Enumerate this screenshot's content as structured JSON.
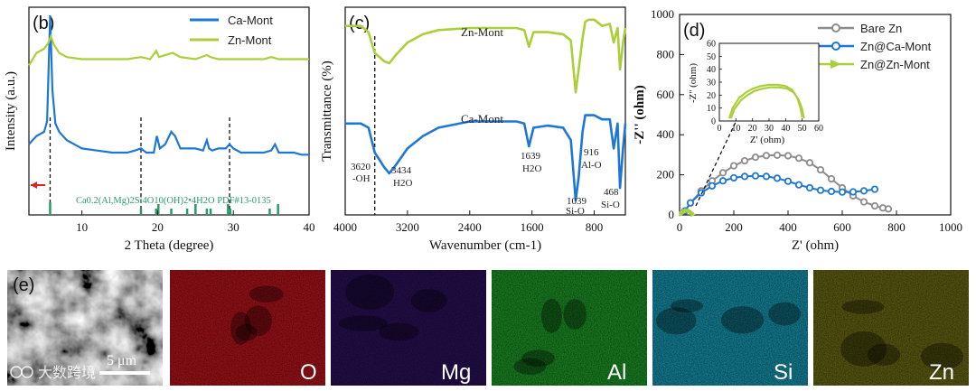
{
  "chart_data": [
    {
      "panel": "(b)",
      "type": "line",
      "xlabel": "2 Theta (degree)",
      "ylabel": "Intensity (a.u.)",
      "xlim": [
        3,
        40
      ],
      "xticks": [
        10,
        20,
        30,
        40
      ],
      "legend": [
        "Ca-Mont",
        "Zn-Mont"
      ],
      "series": [
        {
          "name": "Ca-Mont",
          "color": "#1f77d4",
          "x": [
            3,
            4,
            5,
            5.4,
            5.8,
            6.1,
            6.5,
            7,
            8,
            9,
            10,
            12,
            14,
            16,
            17,
            17.8,
            18.5,
            19.5,
            19.9,
            20.3,
            21,
            21.8,
            22.3,
            23,
            24,
            25,
            26,
            26.5,
            26.8,
            27.2,
            28,
            29,
            29.5,
            30,
            31,
            32,
            33,
            34,
            35,
            35.5,
            36,
            37,
            38,
            39,
            40
          ],
          "y": [
            66,
            62,
            60,
            55,
            4,
            40,
            56,
            60,
            64,
            66,
            68,
            69,
            70,
            70,
            69,
            68,
            70,
            70,
            62,
            68,
            66,
            60,
            62,
            68,
            68,
            68,
            69,
            64,
            68,
            69,
            68,
            68,
            66,
            68,
            70,
            70,
            70,
            70,
            69,
            66,
            70,
            70,
            70,
            71,
            71
          ]
        },
        {
          "name": "Zn-Mont",
          "color": "#a9cf3a",
          "x": [
            3,
            4,
            5,
            5.6,
            5.9,
            6.3,
            7,
            8,
            10,
            12,
            14,
            16,
            17.8,
            19,
            19.8,
            20.2,
            21,
            22,
            23,
            25,
            26.5,
            27,
            28,
            29,
            30,
            32,
            34,
            35,
            36,
            38,
            40
          ],
          "y": [
            28,
            22,
            20,
            17,
            14,
            18,
            22,
            24,
            25,
            25,
            25,
            25,
            24,
            25,
            21,
            24,
            23,
            22,
            24,
            25,
            23,
            24,
            25,
            25,
            25,
            25,
            25,
            24,
            25,
            25,
            25
          ]
        }
      ],
      "reference_pdf_positions": [
        5.8,
        17.8,
        19.8,
        20.1,
        21.8,
        23.9,
        25.0,
        26.5,
        27.0,
        29.3,
        29.6,
        34.8,
        35.9
      ],
      "reference_label": "Ca0.2(Al,Mg)2Si4O10(OH)2•4H2O PDF#13-0135",
      "dashed_x": [
        5.8,
        17.8,
        29.5
      ]
    },
    {
      "panel": "(c)",
      "type": "line",
      "xlabel": "Wavenumber (cm-1)",
      "ylabel": "Transmittance (%)",
      "xlim": [
        4000,
        400
      ],
      "xticks": [
        4000,
        3200,
        2400,
        1600,
        800
      ],
      "series": [
        {
          "name": "Zn-Mont",
          "color": "#a9cf3a",
          "x": [
            4000,
            3800,
            3700,
            3620,
            3500,
            3434,
            3350,
            3200,
            3000,
            2800,
            2400,
            2000,
            1800,
            1700,
            1639,
            1580,
            1400,
            1200,
            1100,
            1039,
            1000,
            950,
            916,
            870,
            800,
            700,
            600,
            550,
            500,
            468,
            430,
            400
          ],
          "y": [
            91,
            91,
            88,
            78,
            74,
            73,
            77,
            83,
            87,
            89,
            90,
            90,
            90,
            89,
            81,
            88,
            88,
            87,
            84,
            59,
            70,
            85,
            93,
            94,
            94,
            91,
            92,
            83,
            90,
            70,
            83,
            90
          ]
        },
        {
          "name": "Ca-Mont",
          "color": "#1f77d4",
          "x": [
            4000,
            3800,
            3700,
            3620,
            3500,
            3434,
            3350,
            3200,
            3000,
            2800,
            2400,
            2000,
            1800,
            1700,
            1639,
            1580,
            1400,
            1200,
            1100,
            1039,
            1000,
            950,
            916,
            870,
            800,
            700,
            600,
            550,
            500,
            468,
            430,
            400
          ],
          "y": [
            44,
            44,
            42,
            30,
            23,
            20,
            24,
            32,
            38,
            42,
            45,
            45,
            45,
            44,
            33,
            42,
            43,
            42,
            36,
            7,
            18,
            40,
            48,
            48,
            48,
            46,
            46,
            32,
            44,
            13,
            32,
            44
          ]
        }
      ],
      "labels": [
        "Zn-Mont",
        "Ca-Mont"
      ],
      "dashed_x": [
        3620
      ],
      "annotations": [
        {
          "text": "3620",
          "sub": "-OH"
        },
        {
          "text": "3434",
          "sub": "H2O"
        },
        {
          "text": "1639",
          "sub": "H2O"
        },
        {
          "text": "916",
          "sub": "Al-O"
        },
        {
          "text": "1039",
          "sub": "Si-O"
        },
        {
          "text": "468",
          "sub": "Si-O"
        }
      ]
    },
    {
      "panel": "(d)",
      "type": "scatter",
      "xlabel": "Z' (ohm)",
      "ylabel": "-Z'' (ohm)",
      "xlim": [
        0,
        1000
      ],
      "ylim": [
        0,
        1000
      ],
      "xticks": [
        0,
        200,
        400,
        600,
        800,
        1000
      ],
      "yticks": [
        0,
        200,
        400,
        600,
        800,
        1000
      ],
      "legend": [
        "Bare Zn",
        "Zn@Ca-Mont",
        "Zn@Zn-Mont"
      ],
      "series": [
        {
          "name": "Bare Zn",
          "color": "#8c8c8c",
          "x": [
            20,
            40,
            80,
            120,
            160,
            200,
            240,
            280,
            320,
            360,
            400,
            440,
            480,
            520,
            560,
            600,
            640,
            680,
            720,
            750,
            770
          ],
          "y": [
            20,
            60,
            120,
            170,
            210,
            245,
            270,
            288,
            296,
            298,
            295,
            283,
            260,
            225,
            180,
            135,
            95,
            65,
            45,
            35,
            30
          ]
        },
        {
          "name": "Zn@Ca-Mont",
          "color": "#1f77d4",
          "x": [
            20,
            40,
            80,
            120,
            160,
            200,
            240,
            280,
            320,
            360,
            400,
            440,
            480,
            520,
            560,
            600,
            640,
            680,
            720
          ],
          "y": [
            20,
            60,
            110,
            145,
            170,
            185,
            192,
            195,
            192,
            183,
            168,
            150,
            135,
            123,
            117,
            114,
            115,
            120,
            128
          ]
        },
        {
          "name": "Zn@Zn-Mont",
          "color": "#a9cf3a",
          "x": [
            8,
            14,
            20,
            28,
            36,
            44,
            50
          ],
          "y": [
            5,
            12,
            18,
            22,
            20,
            12,
            3
          ]
        }
      ],
      "inset": {
        "xlabel": "Z' (ohm)",
        "ylabel": "-Z'' (ohm)",
        "xlim": [
          0,
          60
        ],
        "ylim": [
          0,
          60
        ],
        "xticks": [
          0,
          10,
          20,
          30,
          40,
          50,
          60
        ],
        "yticks": [
          0,
          10,
          20,
          30,
          40,
          50,
          60
        ],
        "series": [
          {
            "x": [
              6,
              8,
              12,
              16,
              20,
              25,
              30,
              35,
              40,
              44,
              47,
              49,
              50
            ],
            "y": [
              2,
              10,
              18,
              22,
              25,
              27,
              28,
              28,
              27,
              24,
              18,
              10,
              3
            ]
          },
          {
            "x": [
              7,
              9,
              13,
              17,
              21,
              26,
              31,
              36,
              41,
              45,
              48,
              50,
              51
            ],
            "y": [
              2,
              9,
              16,
              20,
              23,
              25,
              26,
              26,
              25,
              22,
              16,
              9,
              2
            ]
          }
        ]
      }
    },
    {
      "panel": "(e)",
      "type": "image_panels",
      "scale_bar": "5 μm",
      "maps": [
        {
          "element": "O",
          "color": "#c8141e"
        },
        {
          "element": "Mg",
          "color": "#4a1aa0"
        },
        {
          "element": "Al",
          "color": "#1fa52a"
        },
        {
          "element": "Si",
          "color": "#18a6c2"
        },
        {
          "element": "Zn",
          "color": "#9a9a1c"
        }
      ],
      "watermark": "大数跨境"
    }
  ]
}
